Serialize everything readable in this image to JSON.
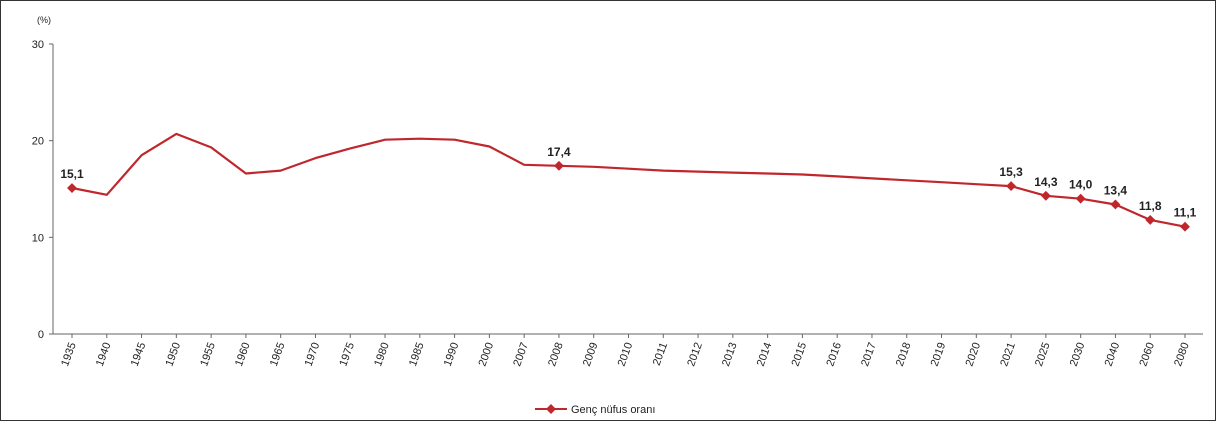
{
  "chart_data": {
    "type": "line",
    "ylabel": "(%)",
    "ylim": [
      0,
      30
    ],
    "yticks": [
      "0",
      "10",
      "20",
      "30"
    ],
    "grid": false,
    "legend_position": "bottom-center",
    "categories": [
      "1935",
      "1940",
      "1945",
      "1950",
      "1955",
      "1960",
      "1965",
      "1970",
      "1975",
      "1980",
      "1985",
      "1990",
      "2000",
      "2007",
      "2008",
      "2009",
      "2010",
      "2011",
      "2012",
      "2013",
      "2014",
      "2015",
      "2016",
      "2017",
      "2018",
      "2019",
      "2020",
      "2021",
      "2025",
      "2030",
      "2040",
      "2060",
      "2080"
    ],
    "series": [
      {
        "name": "Genç nüfus oranı",
        "color": "#c0272d",
        "values": [
          15.1,
          14.4,
          18.5,
          20.7,
          19.3,
          16.6,
          16.9,
          18.2,
          19.2,
          20.1,
          20.2,
          20.1,
          19.4,
          17.5,
          17.4,
          17.3,
          17.1,
          16.9,
          16.8,
          16.7,
          16.6,
          16.5,
          16.3,
          16.1,
          15.9,
          15.7,
          15.5,
          15.3,
          14.3,
          14.0,
          13.4,
          11.8,
          11.1
        ],
        "labels": [
          {
            "index": 0,
            "text": "15,1"
          },
          {
            "index": 14,
            "text": "17,4"
          },
          {
            "index": 27,
            "text": "15,3"
          },
          {
            "index": 28,
            "text": "14,3"
          },
          {
            "index": 29,
            "text": "14,0"
          },
          {
            "index": 30,
            "text": "13,4"
          },
          {
            "index": 31,
            "text": "11,8"
          },
          {
            "index": 32,
            "text": "11,1"
          }
        ],
        "markers_at": [
          0,
          14,
          27,
          28,
          29,
          30,
          31,
          32
        ]
      }
    ]
  }
}
